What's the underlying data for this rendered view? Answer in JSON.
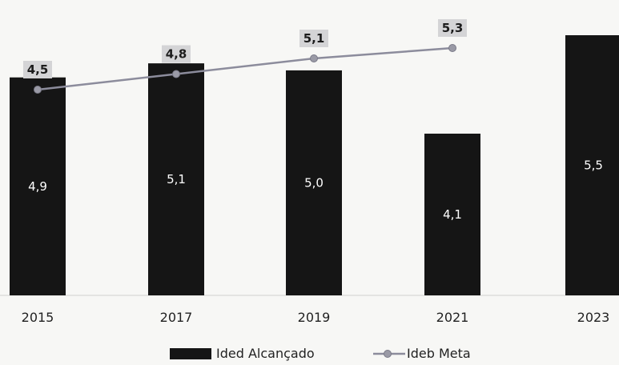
{
  "chart_data": {
    "type": "bar",
    "categories": [
      "2015",
      "2017",
      "2019",
      "2021",
      "2023"
    ],
    "series": [
      {
        "name": "Ided Alcançado",
        "type": "bar",
        "values": [
          4.9,
          5.1,
          5.0,
          4.1,
          5.5
        ],
        "labels": [
          "4,9",
          "5,1",
          "5,0",
          "4,1",
          "5,5"
        ],
        "color": "#151515"
      },
      {
        "name": "Ideb Meta",
        "type": "line",
        "values": [
          4.5,
          4.8,
          5.1,
          5.3,
          null
        ],
        "labels": [
          "4,5",
          "4,8",
          "5,1",
          "5,3",
          null
        ],
        "color": "#8c8c9c"
      }
    ],
    "title": "",
    "xlabel": "",
    "ylabel": "",
    "grid": false,
    "legend": "bottom-center"
  }
}
